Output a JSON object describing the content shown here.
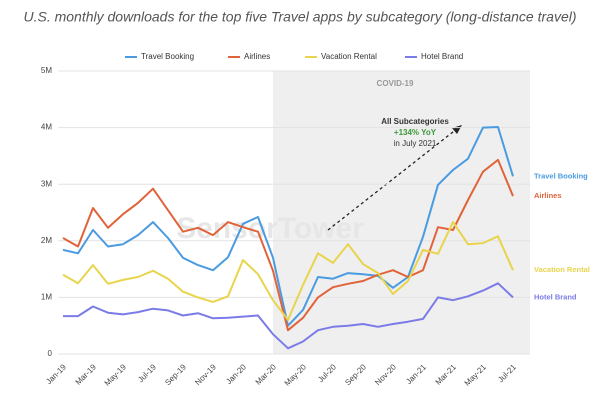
{
  "chart_data": {
    "type": "line",
    "subtitle": "U.S. monthly downloads for the top five Travel apps by subcategory (long-distance travel)",
    "categories": [
      "Jan-19",
      null,
      "Mar-19",
      null,
      "May-19",
      null,
      "Jul-19",
      null,
      "Sep-19",
      null,
      "Nov-19",
      null,
      "Jan-20",
      null,
      "Mar-20",
      null,
      "May-20",
      null,
      "Jul-20",
      null,
      "Sep-20",
      null,
      "Nov-20",
      null,
      "Jan-21",
      null,
      "Mar-21",
      null,
      "May-21",
      null,
      "Jul-21"
    ],
    "series": [
      {
        "name": "Travel Booking",
        "color": "#4a9be0",
        "values": [
          1.84,
          1.78,
          2.19,
          1.9,
          1.94,
          2.1,
          2.33,
          2.05,
          1.7,
          1.57,
          1.48,
          1.71,
          2.3,
          2.42,
          1.7,
          0.5,
          0.78,
          1.36,
          1.33,
          1.43,
          1.41,
          1.38,
          1.17,
          1.36,
          2.07,
          2.99,
          3.25,
          3.45,
          4.0,
          4.01,
          3.14
        ]
      },
      {
        "name": "Airlines",
        "color": "#e0633a",
        "values": [
          2.05,
          1.9,
          2.58,
          2.23,
          2.47,
          2.67,
          2.92,
          2.54,
          2.16,
          2.23,
          2.1,
          2.33,
          2.24,
          2.16,
          1.47,
          0.42,
          0.64,
          1.0,
          1.18,
          1.24,
          1.29,
          1.4,
          1.48,
          1.36,
          1.48,
          2.24,
          2.19,
          2.72,
          3.22,
          3.43,
          2.79
        ]
      },
      {
        "name": "Vacation Rental",
        "color": "#e8d44d",
        "values": [
          1.4,
          1.25,
          1.57,
          1.24,
          1.31,
          1.36,
          1.47,
          1.33,
          1.1,
          1.0,
          0.92,
          1.02,
          1.66,
          1.41,
          0.95,
          0.6,
          1.22,
          1.78,
          1.61,
          1.94,
          1.59,
          1.43,
          1.06,
          1.29,
          1.84,
          1.77,
          2.33,
          1.94,
          1.96,
          2.08,
          1.48
        ]
      },
      {
        "name": "Hotel Brand",
        "color": "#7b7be8",
        "values": [
          0.67,
          0.67,
          0.84,
          0.73,
          0.7,
          0.74,
          0.8,
          0.77,
          0.68,
          0.72,
          0.63,
          0.64,
          0.66,
          0.68,
          0.35,
          0.1,
          0.22,
          0.42,
          0.48,
          0.5,
          0.53,
          0.48,
          0.53,
          0.57,
          0.62,
          1.0,
          0.95,
          1.02,
          1.12,
          1.25,
          1.0
        ]
      }
    ],
    "ylim": [
      0,
      5
    ],
    "yticks": [
      0,
      {
        "value": 1,
        "label": "1M"
      },
      {
        "value": 2,
        "label": "2M"
      },
      {
        "value": 3,
        "label": "3M"
      },
      {
        "value": 4,
        "label": "4M"
      },
      {
        "value": 5,
        "label": "5M"
      }
    ],
    "grid": true,
    "legend": "top",
    "period_label": "COVID-19",
    "annotation": [
      "All Subcategories",
      "+134% YoY",
      "in July 2021"
    ],
    "watermark": "SensorTower"
  }
}
